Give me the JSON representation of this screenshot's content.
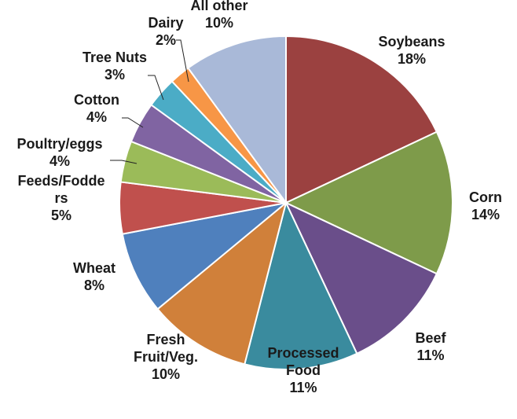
{
  "chart_data": {
    "type": "pie",
    "title": "",
    "start": "12 o'clock",
    "direction": "clockwise",
    "slices": [
      {
        "label": "Soybeans",
        "label_lines": [
          "Soybeans"
        ],
        "value": 18,
        "pct_text": "18%",
        "color": "#9B4140"
      },
      {
        "label": "Corn",
        "label_lines": [
          "Corn"
        ],
        "value": 14,
        "pct_text": "14%",
        "color": "#7E9B4A"
      },
      {
        "label": "Beef",
        "label_lines": [
          "Beef"
        ],
        "value": 11,
        "pct_text": "11%",
        "color": "#6A4E8A"
      },
      {
        "label": "Processed Food",
        "label_lines": [
          "Processed",
          "Food"
        ],
        "value": 11,
        "pct_text": "11%",
        "color": "#3A8B9E"
      },
      {
        "label": "Fresh Fruit/Veg.",
        "label_lines": [
          "Fresh",
          "Fruit/Veg."
        ],
        "value": 10,
        "pct_text": "10%",
        "color": "#D0803A"
      },
      {
        "label": "Wheat",
        "label_lines": [
          "Wheat"
        ],
        "value": 8,
        "pct_text": "8%",
        "color": "#4F80BD"
      },
      {
        "label": "Feeds/Fodders",
        "label_lines": [
          "Feeds/Fodde",
          "rs"
        ],
        "value": 5,
        "pct_text": "5%",
        "color": "#C0504D"
      },
      {
        "label": "Poultry/eggs",
        "label_lines": [
          "Poultry/eggs"
        ],
        "value": 4,
        "pct_text": "4%",
        "color": "#9BBB59"
      },
      {
        "label": "Cotton",
        "label_lines": [
          "Cotton"
        ],
        "value": 4,
        "pct_text": "4%",
        "color": "#8064A2"
      },
      {
        "label": "Tree Nuts",
        "label_lines": [
          "Tree Nuts"
        ],
        "value": 3,
        "pct_text": "3%",
        "color": "#4BACC6"
      },
      {
        "label": "Dairy",
        "label_lines": [
          "Dairy"
        ],
        "value": 2,
        "pct_text": "2%",
        "color": "#F79646"
      },
      {
        "label": "All other",
        "label_lines": [
          "All other"
        ],
        "value": 10,
        "pct_text": "10%",
        "color": "#A9B9D8"
      }
    ]
  }
}
